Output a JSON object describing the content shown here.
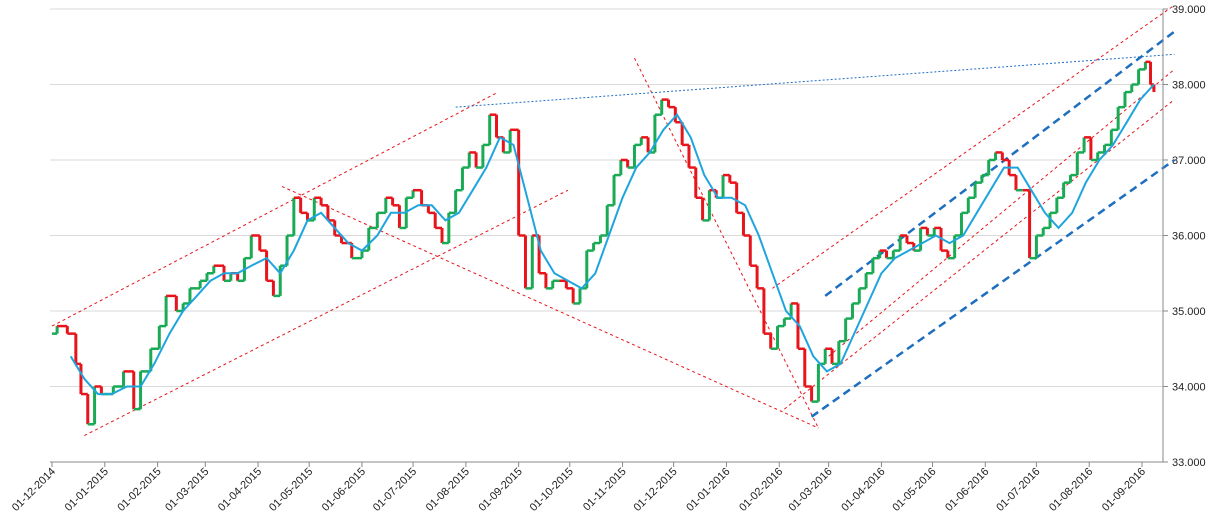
{
  "chart_data": {
    "type": "line",
    "title": "",
    "xlabel": "",
    "ylabel": "",
    "ylim": [
      33000,
      39000
    ],
    "y_ticks": [
      "33.000",
      "34.000",
      "35.000",
      "36.000",
      "37.000",
      "38.000",
      "39.000"
    ],
    "y_tick_values": [
      33000,
      34000,
      35000,
      36000,
      37000,
      38000,
      39000
    ],
    "x_ticks": [
      "01-12-2014",
      "01-01-2015",
      "01-02-2015",
      "01-03-2015",
      "01-04-2015",
      "01-05-2015",
      "01-06-2015",
      "01-07-2015",
      "01-08-2015",
      "01-09-2015",
      "01-10-2015",
      "01-11-2015",
      "01-12-2015",
      "01-01-2016",
      "01-02-2016",
      "01-03-2016",
      "01-04-2016",
      "01-05-2016",
      "01-06-2016",
      "01-07-2016",
      "01-08-2016",
      "01-09-2016"
    ],
    "x_tick_dates": [
      "2014-12-01",
      "2015-01-01",
      "2015-02-01",
      "2015-03-01",
      "2015-04-01",
      "2015-05-01",
      "2015-06-01",
      "2015-07-01",
      "2015-08-01",
      "2015-09-01",
      "2015-10-01",
      "2015-11-01",
      "2015-12-01",
      "2016-01-01",
      "2016-02-01",
      "2016-03-01",
      "2016-04-01",
      "2016-05-01",
      "2016-06-01",
      "2016-07-01",
      "2016-08-01",
      "2016-09-01"
    ],
    "grid": true,
    "colors": {
      "up": "#1aaa55",
      "down": "#e8141b",
      "moving_average": "#1fa5de",
      "trend_red": "#e8141b",
      "trend_blue": "#1f6fbf",
      "gridline": "#d9d9d9"
    },
    "series": [
      {
        "kind": "price_blocks",
        "points": [
          [
            "2014-12-01",
            34700
          ],
          [
            "2014-12-04",
            34800
          ],
          [
            "2014-12-10",
            34700
          ],
          [
            "2014-12-15",
            34300
          ],
          [
            "2014-12-18",
            33900
          ],
          [
            "2014-12-22",
            33500
          ],
          [
            "2014-12-26",
            34000
          ],
          [
            "2014-12-30",
            33900
          ],
          [
            "2015-01-06",
            34000
          ],
          [
            "2015-01-12",
            34200
          ],
          [
            "2015-01-18",
            33700
          ],
          [
            "2015-01-22",
            34200
          ],
          [
            "2015-01-28",
            34500
          ],
          [
            "2015-02-02",
            34800
          ],
          [
            "2015-02-06",
            35200
          ],
          [
            "2015-02-12",
            35000
          ],
          [
            "2015-02-16",
            35100
          ],
          [
            "2015-02-20",
            35300
          ],
          [
            "2015-02-26",
            35400
          ],
          [
            "2015-03-02",
            35500
          ],
          [
            "2015-03-06",
            35600
          ],
          [
            "2015-03-12",
            35400
          ],
          [
            "2015-03-16",
            35500
          ],
          [
            "2015-03-20",
            35400
          ],
          [
            "2015-03-24",
            35700
          ],
          [
            "2015-03-28",
            36000
          ],
          [
            "2015-04-02",
            35800
          ],
          [
            "2015-04-06",
            35400
          ],
          [
            "2015-04-10",
            35200
          ],
          [
            "2015-04-14",
            35600
          ],
          [
            "2015-04-18",
            36000
          ],
          [
            "2015-04-22",
            36500
          ],
          [
            "2015-04-26",
            36300
          ],
          [
            "2015-04-30",
            36200
          ],
          [
            "2015-05-04",
            36500
          ],
          [
            "2015-05-08",
            36400
          ],
          [
            "2015-05-12",
            36200
          ],
          [
            "2015-05-16",
            36000
          ],
          [
            "2015-05-20",
            35900
          ],
          [
            "2015-05-26",
            35700
          ],
          [
            "2015-06-01",
            35800
          ],
          [
            "2015-06-05",
            36100
          ],
          [
            "2015-06-10",
            36300
          ],
          [
            "2015-06-15",
            36500
          ],
          [
            "2015-06-19",
            36400
          ],
          [
            "2015-06-23",
            36100
          ],
          [
            "2015-06-27",
            36500
          ],
          [
            "2015-07-01",
            36600
          ],
          [
            "2015-07-06",
            36400
          ],
          [
            "2015-07-10",
            36300
          ],
          [
            "2015-07-14",
            36100
          ],
          [
            "2015-07-18",
            35900
          ],
          [
            "2015-07-22",
            36300
          ],
          [
            "2015-07-26",
            36600
          ],
          [
            "2015-07-30",
            36900
          ],
          [
            "2015-08-03",
            37100
          ],
          [
            "2015-08-07",
            36900
          ],
          [
            "2015-08-11",
            37200
          ],
          [
            "2015-08-15",
            37600
          ],
          [
            "2015-08-19",
            37300
          ],
          [
            "2015-08-23",
            37100
          ],
          [
            "2015-08-27",
            37400
          ],
          [
            "2015-09-01",
            36000
          ],
          [
            "2015-09-05",
            35300
          ],
          [
            "2015-09-09",
            36000
          ],
          [
            "2015-09-13",
            35500
          ],
          [
            "2015-09-17",
            35300
          ],
          [
            "2015-09-21",
            35400
          ],
          [
            "2015-09-25",
            35400
          ],
          [
            "2015-09-29",
            35300
          ],
          [
            "2015-10-03",
            35100
          ],
          [
            "2015-10-07",
            35300
          ],
          [
            "2015-10-11",
            35800
          ],
          [
            "2015-10-15",
            35900
          ],
          [
            "2015-10-19",
            36000
          ],
          [
            "2015-10-23",
            36400
          ],
          [
            "2015-10-27",
            36800
          ],
          [
            "2015-10-31",
            37000
          ],
          [
            "2015-11-04",
            36900
          ],
          [
            "2015-11-08",
            37200
          ],
          [
            "2015-11-12",
            37300
          ],
          [
            "2015-11-16",
            37100
          ],
          [
            "2015-11-20",
            37600
          ],
          [
            "2015-11-24",
            37800
          ],
          [
            "2015-11-28",
            37700
          ],
          [
            "2015-12-02",
            37500
          ],
          [
            "2015-12-06",
            37200
          ],
          [
            "2015-12-10",
            36900
          ],
          [
            "2015-12-14",
            36500
          ],
          [
            "2015-12-18",
            36200
          ],
          [
            "2015-12-22",
            36600
          ],
          [
            "2015-12-26",
            36500
          ],
          [
            "2015-12-30",
            36800
          ],
          [
            "2016-01-03",
            36700
          ],
          [
            "2016-01-07",
            36300
          ],
          [
            "2016-01-11",
            36000
          ],
          [
            "2016-01-15",
            35600
          ],
          [
            "2016-01-19",
            35300
          ],
          [
            "2016-01-23",
            34700
          ],
          [
            "2016-01-27",
            34500
          ],
          [
            "2016-01-31",
            34800
          ],
          [
            "2016-02-04",
            34900
          ],
          [
            "2016-02-08",
            35100
          ],
          [
            "2016-02-12",
            34500
          ],
          [
            "2016-02-16",
            34000
          ],
          [
            "2016-02-20",
            33800
          ],
          [
            "2016-02-24",
            34300
          ],
          [
            "2016-02-28",
            34500
          ],
          [
            "2016-03-03",
            34300
          ],
          [
            "2016-03-07",
            34600
          ],
          [
            "2016-03-11",
            34900
          ],
          [
            "2016-03-15",
            35100
          ],
          [
            "2016-03-19",
            35300
          ],
          [
            "2016-03-23",
            35500
          ],
          [
            "2016-03-27",
            35700
          ],
          [
            "2016-03-31",
            35800
          ],
          [
            "2016-04-04",
            35700
          ],
          [
            "2016-04-08",
            35800
          ],
          [
            "2016-04-12",
            36000
          ],
          [
            "2016-04-16",
            35900
          ],
          [
            "2016-04-20",
            35800
          ],
          [
            "2016-04-24",
            36100
          ],
          [
            "2016-04-28",
            36000
          ],
          [
            "2016-05-02",
            36100
          ],
          [
            "2016-05-06",
            35800
          ],
          [
            "2016-05-10",
            35700
          ],
          [
            "2016-05-14",
            36000
          ],
          [
            "2016-05-18",
            36300
          ],
          [
            "2016-05-22",
            36500
          ],
          [
            "2016-05-26",
            36700
          ],
          [
            "2016-05-30",
            36800
          ],
          [
            "2016-06-03",
            37000
          ],
          [
            "2016-06-07",
            37100
          ],
          [
            "2016-06-11",
            37000
          ],
          [
            "2016-06-15",
            36800
          ],
          [
            "2016-06-19",
            36600
          ],
          [
            "2016-06-23",
            36600
          ],
          [
            "2016-06-27",
            35700
          ],
          [
            "2016-07-01",
            36000
          ],
          [
            "2016-07-05",
            36100
          ],
          [
            "2016-07-09",
            36300
          ],
          [
            "2016-07-13",
            36500
          ],
          [
            "2016-07-17",
            36700
          ],
          [
            "2016-07-21",
            36800
          ],
          [
            "2016-07-25",
            37100
          ],
          [
            "2016-07-29",
            37300
          ],
          [
            "2016-08-02",
            37000
          ],
          [
            "2016-08-06",
            37100
          ],
          [
            "2016-08-10",
            37200
          ],
          [
            "2016-08-14",
            37400
          ],
          [
            "2016-08-18",
            37700
          ],
          [
            "2016-08-22",
            37900
          ],
          [
            "2016-08-26",
            38000
          ],
          [
            "2016-08-30",
            38200
          ],
          [
            "2016-09-03",
            38300
          ],
          [
            "2016-09-06",
            38000
          ],
          [
            "2016-09-08",
            37900
          ]
        ]
      },
      {
        "kind": "moving_average",
        "points": [
          [
            "2014-12-12",
            34400
          ],
          [
            "2014-12-20",
            34100
          ],
          [
            "2014-12-28",
            33900
          ],
          [
            "2015-01-05",
            33900
          ],
          [
            "2015-01-14",
            34000
          ],
          [
            "2015-01-22",
            34000
          ],
          [
            "2015-01-30",
            34300
          ],
          [
            "2015-02-08",
            34700
          ],
          [
            "2015-02-16",
            35000
          ],
          [
            "2015-02-24",
            35200
          ],
          [
            "2015-03-04",
            35400
          ],
          [
            "2015-03-12",
            35500
          ],
          [
            "2015-03-20",
            35500
          ],
          [
            "2015-03-28",
            35600
          ],
          [
            "2015-04-06",
            35700
          ],
          [
            "2015-04-14",
            35500
          ],
          [
            "2015-04-22",
            35800
          ],
          [
            "2015-04-30",
            36200
          ],
          [
            "2015-05-08",
            36300
          ],
          [
            "2015-05-16",
            36100
          ],
          [
            "2015-05-24",
            35900
          ],
          [
            "2015-06-01",
            35800
          ],
          [
            "2015-06-10",
            36000
          ],
          [
            "2015-06-18",
            36300
          ],
          [
            "2015-06-26",
            36300
          ],
          [
            "2015-07-04",
            36400
          ],
          [
            "2015-07-12",
            36400
          ],
          [
            "2015-07-20",
            36200
          ],
          [
            "2015-07-28",
            36300
          ],
          [
            "2015-08-05",
            36600
          ],
          [
            "2015-08-13",
            36900
          ],
          [
            "2015-08-21",
            37300
          ],
          [
            "2015-08-29",
            37200
          ],
          [
            "2015-09-06",
            36500
          ],
          [
            "2015-09-14",
            35800
          ],
          [
            "2015-09-22",
            35500
          ],
          [
            "2015-09-30",
            35400
          ],
          [
            "2015-10-08",
            35300
          ],
          [
            "2015-10-16",
            35500
          ],
          [
            "2015-10-24",
            36000
          ],
          [
            "2015-11-01",
            36500
          ],
          [
            "2015-11-09",
            36900
          ],
          [
            "2015-11-17",
            37100
          ],
          [
            "2015-11-25",
            37400
          ],
          [
            "2015-12-03",
            37600
          ],
          [
            "2015-12-11",
            37300
          ],
          [
            "2015-12-19",
            36800
          ],
          [
            "2015-12-27",
            36500
          ],
          [
            "2016-01-04",
            36500
          ],
          [
            "2016-01-12",
            36400
          ],
          [
            "2016-01-20",
            36000
          ],
          [
            "2016-01-28",
            35500
          ],
          [
            "2016-02-05",
            35000
          ],
          [
            "2016-02-13",
            34800
          ],
          [
            "2016-02-21",
            34400
          ],
          [
            "2016-02-29",
            34200
          ],
          [
            "2016-03-08",
            34300
          ],
          [
            "2016-03-16",
            34700
          ],
          [
            "2016-03-24",
            35100
          ],
          [
            "2016-04-01",
            35500
          ],
          [
            "2016-04-09",
            35700
          ],
          [
            "2016-04-17",
            35800
          ],
          [
            "2016-04-25",
            35900
          ],
          [
            "2016-05-03",
            36000
          ],
          [
            "2016-05-11",
            35900
          ],
          [
            "2016-05-19",
            36000
          ],
          [
            "2016-05-27",
            36300
          ],
          [
            "2016-06-04",
            36600
          ],
          [
            "2016-06-12",
            36900
          ],
          [
            "2016-06-20",
            36900
          ],
          [
            "2016-06-28",
            36600
          ],
          [
            "2016-07-06",
            36300
          ],
          [
            "2016-07-14",
            36100
          ],
          [
            "2016-07-22",
            36300
          ],
          [
            "2016-07-30",
            36700
          ],
          [
            "2016-08-07",
            37000
          ],
          [
            "2016-08-15",
            37200
          ],
          [
            "2016-08-23",
            37500
          ],
          [
            "2016-08-31",
            37800
          ],
          [
            "2016-09-08",
            38000
          ]
        ]
      }
    ],
    "trendlines": [
      {
        "style": "red-dotted",
        "from": [
          "2014-12-01",
          34800
        ],
        "to": [
          "2015-08-20",
          37900
        ]
      },
      {
        "style": "red-dotted",
        "from": [
          "2014-12-20",
          33350
        ],
        "to": [
          "2015-09-30",
          36600
        ]
      },
      {
        "style": "red-dotted",
        "from": [
          "2015-04-15",
          36650
        ],
        "to": [
          "2016-02-24",
          33450
        ]
      },
      {
        "style": "red-dotted",
        "from": [
          "2015-11-08",
          38350
        ],
        "to": [
          "2016-02-24",
          33450
        ]
      },
      {
        "style": "red-dotted",
        "from": [
          "2016-01-28",
          35300
        ],
        "to": [
          "2016-09-20",
          39050
        ]
      },
      {
        "style": "red-dotted",
        "from": [
          "2016-02-04",
          33700
        ],
        "to": [
          "2016-09-20",
          37800
        ]
      },
      {
        "style": "red-dotted",
        "from": [
          "2016-03-01",
          34400
        ],
        "to": [
          "2016-09-20",
          38200
        ]
      },
      {
        "style": "blue-dotted",
        "from": [
          "2015-07-26",
          37700
        ],
        "to": [
          "2016-09-20",
          38400
        ]
      },
      {
        "style": "blue-dashed",
        "from": [
          "2016-02-20",
          33600
        ],
        "to": [
          "2016-09-20",
          37000
        ]
      },
      {
        "style": "blue-dashed",
        "from": [
          "2016-02-28",
          35200
        ],
        "to": [
          "2016-09-20",
          38700
        ]
      }
    ]
  }
}
